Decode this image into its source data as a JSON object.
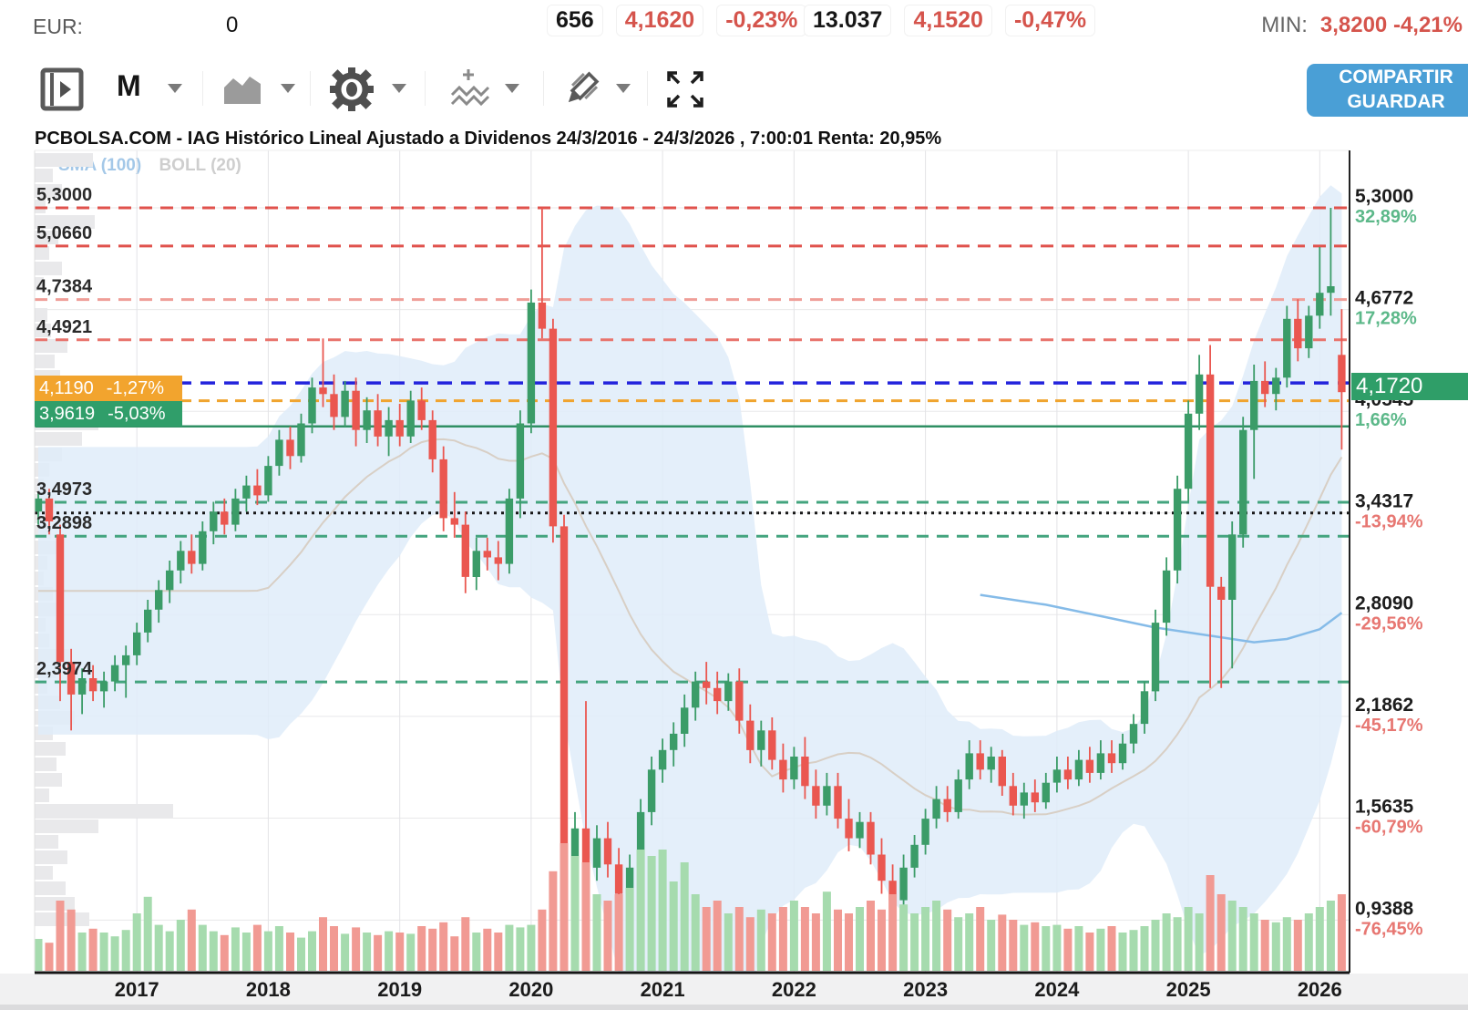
{
  "header": {
    "eur_label": "EUR:",
    "eur_value": "0",
    "quotes": [
      {
        "count": "656",
        "price": "4,1620",
        "change": "-0,23%"
      },
      {
        "count": "13.037",
        "price": "4,1520",
        "change": "-0,47%"
      }
    ],
    "min_label": "MIN:",
    "min_value": "3,8200 -4,21%"
  },
  "toolbar": {
    "interval": "M",
    "icon_names": [
      "panel-toggle-icon",
      "interval-dropdown",
      "area-chart-icon",
      "settings-gear-icon",
      "add-indicator-icon",
      "draw-pencil-icon",
      "fullscreen-icon"
    ],
    "share_label": "COMPARTIR",
    "save_label": "GUARDAR"
  },
  "title": "PCBOLSA.COM - IAG Histórico Lineal Ajustado a Dividenos 24/3/2016 - 24/3/2026 , 7:00:01 Renta: 20,95%",
  "legend": {
    "sma": "SMA (100)",
    "boll": "BOLL (20)"
  },
  "left_axis": {
    "labels": [
      {
        "text": "5,3000",
        "price": 5.3
      },
      {
        "text": "5,0660",
        "price": 5.066
      },
      {
        "text": "4,7384",
        "price": 4.7384
      },
      {
        "text": "4,4921",
        "price": 4.4921
      },
      {
        "text": "3,4973",
        "price": 3.4973
      },
      {
        "text": "3,2898",
        "price": 3.2898
      },
      {
        "text": "2,3974",
        "price": 2.3974
      }
    ],
    "orange_badge": {
      "value": "4,1190",
      "pct": "-1,27%",
      "price": 4.119
    },
    "green_badge": {
      "value": "3,9619",
      "pct": "-5,03%",
      "price": 3.9619
    }
  },
  "right_axis": {
    "labels": [
      {
        "value": "5,3000",
        "pct": "32,89%",
        "price": 5.3,
        "dir": "up"
      },
      {
        "value": "4,6772",
        "pct": "17,28%",
        "price": 4.6772,
        "dir": "up"
      },
      {
        "value": "4,0545",
        "pct": "1,66%",
        "price": 4.0545,
        "dir": "up"
      },
      {
        "value": "3,4317",
        "pct": "-13,94%",
        "price": 3.4317,
        "dir": "down"
      },
      {
        "value": "2,8090",
        "pct": "-29,56%",
        "price": 2.809,
        "dir": "down"
      },
      {
        "value": "2,1862",
        "pct": "-45,17%",
        "price": 2.1862,
        "dir": "down"
      },
      {
        "value": "1,5635",
        "pct": "-60,79%",
        "price": 1.5635,
        "dir": "down"
      },
      {
        "value": "0,9388",
        "pct": "-76,45%",
        "price": 0.9388,
        "dir": "down"
      }
    ],
    "badge": {
      "value": "4,1720",
      "price": 4.172
    }
  },
  "x_axis": {
    "years": [
      {
        "label": "2017",
        "index": 9
      },
      {
        "label": "2018",
        "index": 21
      },
      {
        "label": "2019",
        "index": 33
      },
      {
        "label": "2020",
        "index": 45
      },
      {
        "label": "2021",
        "index": 57
      },
      {
        "label": "2022",
        "index": 69
      },
      {
        "label": "2023",
        "index": 81
      },
      {
        "label": "2024",
        "index": 93
      },
      {
        "label": "2025",
        "index": 105
      },
      {
        "label": "2026",
        "index": 117
      }
    ]
  },
  "levels": [
    {
      "price": 5.3,
      "color": "#e0524c",
      "dash": "14 9",
      "width": 3
    },
    {
      "price": 5.066,
      "color": "#e0524c",
      "dash": "14 9",
      "width": 3
    },
    {
      "price": 4.7384,
      "color": "#ef9e98",
      "dash": "14 9",
      "width": 3
    },
    {
      "price": 4.4921,
      "color": "#e8736c",
      "dash": "14 9",
      "width": 3
    },
    {
      "price": 4.228,
      "color": "#2323dc",
      "dash": "16 10",
      "width": 3.5
    },
    {
      "price": 4.119,
      "color": "#f0a42f",
      "dash": "12 8",
      "width": 3
    },
    {
      "price": 3.9619,
      "color": "#2f8f63",
      "dash": "",
      "width": 2.5
    },
    {
      "price": 3.4973,
      "color": "#43a47e",
      "dash": "13 9",
      "width": 3
    },
    {
      "price": 3.4317,
      "color": "#171717",
      "dash": "3 5",
      "width": 3
    },
    {
      "price": 3.2898,
      "color": "#43a47e",
      "dash": "13 9",
      "width": 3
    },
    {
      "price": 2.3974,
      "color": "#43a47e",
      "dash": "13 9",
      "width": 3
    }
  ],
  "colors": {
    "up": "#3b9c68",
    "down": "#ea5750",
    "vol_up": "#a6dbae",
    "vol_down": "#f19a93",
    "band": "#dfecf9",
    "boll_mid": "#d8cfc5",
    "sma100": "#85bbe8",
    "pct_up": "#5cb889",
    "pct_down": "#e77772",
    "accent_blue": "#4a9fd6",
    "badge_orange": "#f2a42e",
    "badge_green": "#2f9e68"
  },
  "chart_data": {
    "type": "candlestick",
    "title": "IAG Histórico Lineal Ajustado a Dividenos",
    "period": "monthly",
    "range": "24/3/2016 - 24/3/2026",
    "renta": "20,95%",
    "last_close": 4.172,
    "min_marked": 3.82,
    "max_marked": 5.3,
    "candles": [
      [
        3.44,
        3.56,
        3.36,
        3.52,
        0.25
      ],
      [
        3.52,
        3.58,
        3.3,
        3.38,
        0.22
      ],
      [
        3.3,
        3.36,
        2.28,
        2.52,
        0.55
      ],
      [
        2.52,
        2.6,
        2.1,
        2.32,
        0.48
      ],
      [
        2.32,
        2.48,
        2.2,
        2.42,
        0.3
      ],
      [
        2.42,
        2.5,
        2.28,
        2.34,
        0.33
      ],
      [
        2.34,
        2.46,
        2.24,
        2.4,
        0.3
      ],
      [
        2.4,
        2.56,
        2.34,
        2.5,
        0.27
      ],
      [
        2.5,
        2.62,
        2.3,
        2.56,
        0.32
      ],
      [
        2.56,
        2.76,
        2.5,
        2.7,
        0.45
      ],
      [
        2.7,
        2.9,
        2.64,
        2.84,
        0.58
      ],
      [
        2.84,
        3.02,
        2.76,
        2.96,
        0.36
      ],
      [
        2.96,
        3.14,
        2.88,
        3.08,
        0.31
      ],
      [
        3.08,
        3.26,
        3.0,
        3.2,
        0.4
      ],
      [
        3.2,
        3.3,
        3.06,
        3.12,
        0.48
      ],
      [
        3.12,
        3.38,
        3.08,
        3.32,
        0.36
      ],
      [
        3.32,
        3.5,
        3.24,
        3.44,
        0.31
      ],
      [
        3.44,
        3.52,
        3.3,
        3.36,
        0.28
      ],
      [
        3.36,
        3.58,
        3.32,
        3.52,
        0.34
      ],
      [
        3.52,
        3.66,
        3.44,
        3.6,
        0.3
      ],
      [
        3.6,
        3.7,
        3.48,
        3.54,
        0.36
      ],
      [
        3.54,
        3.78,
        3.5,
        3.72,
        0.31
      ],
      [
        3.72,
        3.94,
        3.66,
        3.88,
        0.35
      ],
      [
        3.88,
        3.96,
        3.7,
        3.78,
        0.3
      ],
      [
        3.78,
        4.04,
        3.74,
        3.98,
        0.26
      ],
      [
        3.98,
        4.26,
        3.92,
        4.2,
        0.31
      ],
      [
        4.2,
        4.5,
        4.08,
        4.16,
        0.42
      ],
      [
        4.16,
        4.28,
        3.94,
        4.02,
        0.35
      ],
      [
        4.02,
        4.24,
        3.96,
        4.18,
        0.29
      ],
      [
        4.18,
        4.26,
        3.84,
        3.94,
        0.34
      ],
      [
        3.94,
        4.14,
        3.86,
        4.06,
        0.3
      ],
      [
        4.06,
        4.16,
        3.84,
        3.9,
        0.28
      ],
      [
        3.9,
        4.08,
        3.78,
        4.0,
        0.31
      ],
      [
        4.0,
        4.1,
        3.84,
        3.9,
        0.3
      ],
      [
        3.9,
        4.18,
        3.86,
        4.12,
        0.29
      ],
      [
        4.12,
        4.2,
        3.94,
        4.0,
        0.35
      ],
      [
        4.0,
        4.06,
        3.68,
        3.76,
        0.33
      ],
      [
        3.76,
        3.84,
        3.32,
        3.4,
        0.38
      ],
      [
        3.4,
        3.56,
        3.28,
        3.36,
        0.27
      ],
      [
        3.36,
        3.44,
        2.94,
        3.04,
        0.42
      ],
      [
        3.04,
        3.28,
        2.96,
        3.2,
        0.3
      ],
      [
        3.2,
        3.28,
        3.08,
        3.16,
        0.33
      ],
      [
        3.16,
        3.26,
        3.02,
        3.12,
        0.3
      ],
      [
        3.12,
        3.58,
        3.06,
        3.52,
        0.36
      ],
      [
        3.52,
        4.06,
        3.4,
        3.98,
        0.34
      ],
      [
        3.98,
        4.8,
        3.92,
        4.72,
        0.36
      ],
      [
        4.72,
        5.3,
        4.5,
        4.56,
        0.48
      ],
      [
        4.56,
        4.62,
        3.25,
        3.35,
        0.78
      ],
      [
        3.35,
        3.42,
        1.05,
        1.18,
        1.0
      ],
      [
        1.18,
        1.6,
        1.08,
        1.5,
        0.9
      ],
      [
        1.5,
        2.28,
        1.16,
        1.26,
        0.85
      ],
      [
        1.26,
        1.52,
        1.18,
        1.44,
        0.6
      ],
      [
        1.44,
        1.54,
        1.2,
        1.28,
        0.55
      ],
      [
        1.28,
        1.38,
        1.0,
        1.1,
        0.6
      ],
      [
        1.1,
        1.34,
        1.02,
        1.26,
        0.65
      ],
      [
        1.26,
        1.68,
        1.2,
        1.6,
        0.95
      ],
      [
        1.6,
        1.94,
        1.52,
        1.86,
        0.9
      ],
      [
        1.86,
        2.05,
        1.78,
        1.98,
        0.95
      ],
      [
        1.98,
        2.15,
        1.88,
        2.08,
        0.7
      ],
      [
        2.08,
        2.32,
        2.0,
        2.24,
        0.85
      ],
      [
        2.24,
        2.46,
        2.16,
        2.4,
        0.6
      ],
      [
        2.4,
        2.52,
        2.26,
        2.36,
        0.5
      ],
      [
        2.36,
        2.46,
        2.2,
        2.28,
        0.55
      ],
      [
        2.28,
        2.45,
        2.22,
        2.4,
        0.45
      ],
      [
        2.4,
        2.48,
        2.08,
        2.16,
        0.5
      ],
      [
        2.16,
        2.26,
        1.9,
        1.98,
        0.42
      ],
      [
        1.98,
        2.16,
        1.88,
        2.1,
        0.48
      ],
      [
        2.1,
        2.18,
        1.86,
        1.92,
        0.45
      ],
      [
        1.92,
        2.02,
        1.72,
        1.8,
        0.5
      ],
      [
        1.8,
        2.0,
        1.74,
        1.94,
        0.55
      ],
      [
        1.94,
        2.06,
        1.68,
        1.76,
        0.5
      ],
      [
        1.76,
        1.86,
        1.56,
        1.64,
        0.45
      ],
      [
        1.64,
        1.84,
        1.58,
        1.76,
        0.62
      ],
      [
        1.76,
        1.84,
        1.5,
        1.56,
        0.48
      ],
      [
        1.56,
        1.68,
        1.36,
        1.44,
        0.45
      ],
      [
        1.44,
        1.6,
        1.38,
        1.54,
        0.5
      ],
      [
        1.54,
        1.6,
        1.28,
        1.34,
        0.55
      ],
      [
        1.34,
        1.44,
        1.1,
        1.18,
        0.48
      ],
      [
        1.18,
        1.28,
        0.95,
        1.06,
        0.6
      ],
      [
        1.06,
        1.34,
        1.0,
        1.26,
        0.52
      ],
      [
        1.26,
        1.46,
        1.2,
        1.4,
        0.45
      ],
      [
        1.4,
        1.62,
        1.34,
        1.56,
        0.5
      ],
      [
        1.56,
        1.76,
        1.5,
        1.68,
        0.55
      ],
      [
        1.68,
        1.76,
        1.54,
        1.6,
        0.48
      ],
      [
        1.6,
        1.86,
        1.56,
        1.8,
        0.42
      ],
      [
        1.8,
        2.04,
        1.74,
        1.96,
        0.45
      ],
      [
        1.96,
        2.04,
        1.8,
        1.86,
        0.5
      ],
      [
        1.86,
        2.0,
        1.78,
        1.94,
        0.4
      ],
      [
        1.94,
        1.98,
        1.7,
        1.76,
        0.44
      ],
      [
        1.76,
        1.84,
        1.58,
        1.64,
        0.4
      ],
      [
        1.64,
        1.78,
        1.56,
        1.72,
        0.36
      ],
      [
        1.72,
        1.8,
        1.6,
        1.66,
        0.38
      ],
      [
        1.66,
        1.84,
        1.62,
        1.78,
        0.35
      ],
      [
        1.78,
        1.94,
        1.72,
        1.86,
        0.36
      ],
      [
        1.86,
        1.94,
        1.74,
        1.8,
        0.33
      ],
      [
        1.8,
        1.98,
        1.76,
        1.92,
        0.35
      ],
      [
        1.92,
        2.0,
        1.78,
        1.84,
        0.3
      ],
      [
        1.84,
        2.04,
        1.8,
        1.96,
        0.33
      ],
      [
        1.96,
        2.04,
        1.84,
        1.9,
        0.35
      ],
      [
        1.9,
        2.08,
        1.86,
        2.02,
        0.3
      ],
      [
        2.02,
        2.2,
        1.96,
        2.14,
        0.32
      ],
      [
        2.14,
        2.4,
        2.08,
        2.34,
        0.35
      ],
      [
        2.34,
        2.84,
        2.28,
        2.76,
        0.4
      ],
      [
        2.76,
        3.16,
        2.68,
        3.08,
        0.45
      ],
      [
        3.08,
        3.66,
        3.0,
        3.58,
        0.42
      ],
      [
        3.58,
        4.12,
        3.5,
        4.04,
        0.5
      ],
      [
        4.04,
        4.4,
        3.94,
        4.28,
        0.45
      ],
      [
        4.28,
        4.46,
        2.36,
        2.98,
        0.75
      ],
      [
        2.98,
        3.04,
        2.36,
        2.9,
        0.6
      ],
      [
        2.9,
        3.38,
        2.48,
        3.3,
        0.55
      ],
      [
        3.3,
        4.02,
        3.22,
        3.94,
        0.5
      ],
      [
        3.94,
        4.34,
        3.64,
        4.24,
        0.45
      ],
      [
        4.24,
        4.36,
        4.08,
        4.16,
        0.4
      ],
      [
        4.16,
        4.32,
        4.06,
        4.26,
        0.38
      ],
      [
        4.26,
        4.7,
        4.2,
        4.62,
        0.42
      ],
      [
        4.62,
        4.74,
        4.36,
        4.44,
        0.4
      ],
      [
        4.44,
        4.7,
        4.38,
        4.64,
        0.45
      ],
      [
        4.64,
        5.06,
        4.56,
        4.78,
        0.5
      ],
      [
        4.78,
        5.3,
        4.64,
        4.82,
        0.55
      ],
      [
        4.4,
        4.68,
        3.82,
        4.172,
        0.6
      ]
    ],
    "boll_window": 20,
    "sma100_points": [
      [
        86,
        2.93
      ],
      [
        92,
        2.87
      ],
      [
        97,
        2.8
      ],
      [
        102,
        2.73
      ],
      [
        107,
        2.68
      ],
      [
        111,
        2.64
      ],
      [
        114,
        2.66
      ],
      [
        117,
        2.72
      ],
      [
        119,
        2.82
      ]
    ],
    "volume_profile": [
      64,
      20,
      30,
      12,
      66,
      26,
      16,
      30,
      10,
      0,
      14,
      18,
      36,
      22,
      28,
      62,
      88,
      70,
      52,
      30,
      16,
      10,
      24,
      8,
      18,
      26,
      14,
      10,
      20,
      28,
      12,
      16,
      38,
      24,
      14,
      28,
      44,
      20,
      34,
      24,
      30,
      16,
      152,
      70,
      26,
      36,
      20,
      34,
      44,
      60
    ]
  }
}
